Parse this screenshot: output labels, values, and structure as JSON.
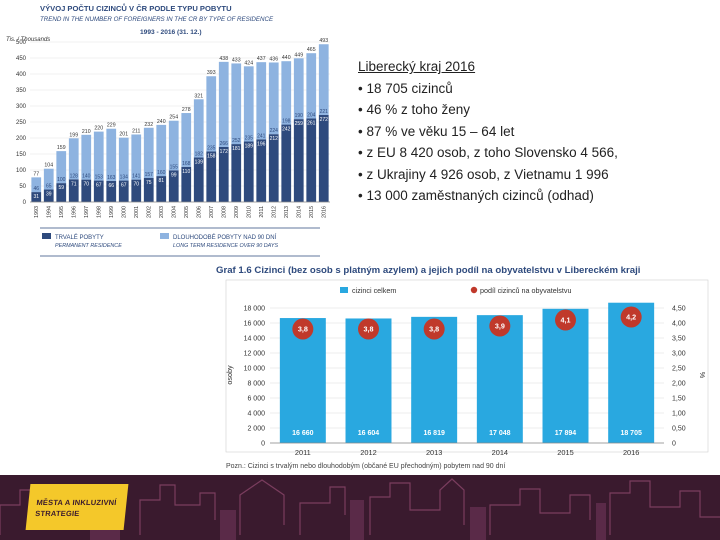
{
  "info": {
    "title": "Liberecký kraj 2016",
    "lines": [
      "18 705 cizinců",
      "46 % z toho ženy",
      "87 % ve věku 15 – 64 let",
      "z EU 8 420 osob, z toho Slovensko 4 566,",
      "z Ukrajiny 4 926 osob, z Vietnamu 1 996",
      "13 000 zaměstnaných cizinců (odhad)"
    ]
  },
  "logo": {
    "line1": "MĚSTA A INKLUZIVNÍ",
    "line2": "STRATEGIE"
  },
  "colors": {
    "dark_blue": "#2e4a7d",
    "light_blue": "#8eb3e0",
    "bar_blue": "#29a8e0",
    "dot_red": "#c0392b",
    "footer": "#3a1a2e",
    "logo_yellow": "#f4c82a"
  },
  "chart_data": [
    {
      "type": "bar",
      "stacked": true,
      "title": "VÝVOJ POČTU CIZINCŮ V ČR PODLE TYPU POBYTU",
      "subtitle": "TREND IN THE NUMBER OF FOREIGNERS IN THE CR BY TYPE OF RESIDENCE",
      "period": "1993 - 2016 (31. 12.)",
      "ylabel": "Tis. / Thousands",
      "ylim": [
        0,
        500
      ],
      "yticks": [
        0,
        50,
        100,
        150,
        200,
        250,
        300,
        350,
        400,
        450,
        500
      ],
      "categories": [
        "1993",
        "1994",
        "1995",
        "1996",
        "1997",
        "1998",
        "1999",
        "2000",
        "2001",
        "2002",
        "2003",
        "2004",
        "2005",
        "2006",
        "2007",
        "2008",
        "2009",
        "2010",
        "2011",
        "2012",
        "2013",
        "2014",
        "2015",
        "2016"
      ],
      "totals": [
        77,
        104,
        159,
        199,
        210,
        220,
        229,
        201,
        211,
        232,
        240,
        254,
        278,
        321,
        393,
        438,
        433,
        424,
        437,
        436,
        440,
        449,
        465,
        493
      ],
      "series": [
        {
          "name": "TRVALÉ POBYTY",
          "name_en": "PERMANENT RESIDENCE",
          "values": [
            31,
            39,
            59,
            71,
            70,
            67,
            66,
            67,
            70,
            75,
            81,
            99,
            110,
            139,
            158,
            172,
            181,
            189,
            196,
            212,
            242,
            259,
            261,
            272
          ]
        },
        {
          "name": "DLOUHODOBÉ POBYTY NAD 90 DNÍ",
          "name_en": "LONG TERM RESIDENCE OVER 90 DAYS",
          "values": [
            46,
            65,
            100,
            128,
            140,
            153,
            163,
            134,
            141,
            157,
            160,
            155,
            168,
            182,
            235,
            266,
            252,
            235,
            241,
            224,
            198,
            190,
            204,
            221
          ]
        }
      ]
    },
    {
      "type": "bar",
      "title": "Graf 1.6 Cizinci (bez osob s platným azylem) a jejich podíl na obyvatelstvu v Libereckém kraji",
      "ylabel": "osoby",
      "y2label": "%",
      "ylim": [
        0,
        18000
      ],
      "y2lim": [
        0,
        4.5
      ],
      "yticks": [
        0,
        2000,
        4000,
        6000,
        8000,
        10000,
        12000,
        14000,
        16000,
        18000
      ],
      "ytick_labels": [
        "0",
        "2 000",
        "4 000",
        "6 000",
        "8 000",
        "10 000",
        "12 000",
        "14 000",
        "16 000",
        "18 000"
      ],
      "y2ticks": [
        0,
        0.5,
        1.0,
        1.5,
        2.0,
        2.5,
        3.0,
        3.5,
        4.0,
        4.5
      ],
      "y2tick_labels": [
        "0",
        "0,50",
        "1,00",
        "1,50",
        "2,00",
        "2,50",
        "3,00",
        "3,50",
        "4,00",
        "4,50"
      ],
      "categories": [
        "2011",
        "2012",
        "2013",
        "2014",
        "2015",
        "2016"
      ],
      "series": [
        {
          "name": "cizinci celkem",
          "values": [
            16660,
            16604,
            16819,
            17048,
            17894,
            18705
          ],
          "labels": [
            "16 660",
            "16 604",
            "16 819",
            "17 048",
            "17 894",
            "18 705"
          ]
        },
        {
          "name": "podíl cizinců na obyvatelstvu",
          "values": [
            3.8,
            3.8,
            3.8,
            3.9,
            4.1,
            4.2
          ],
          "labels": [
            "3,8",
            "3,8",
            "3,8",
            "3,9",
            "4,1",
            "4,2"
          ]
        }
      ],
      "note": "Pozn.: Cizinci s trvalým nebo dlouhodobým (občané EU přechodným) pobytem nad 90 dní",
      "legend": "top"
    }
  ]
}
